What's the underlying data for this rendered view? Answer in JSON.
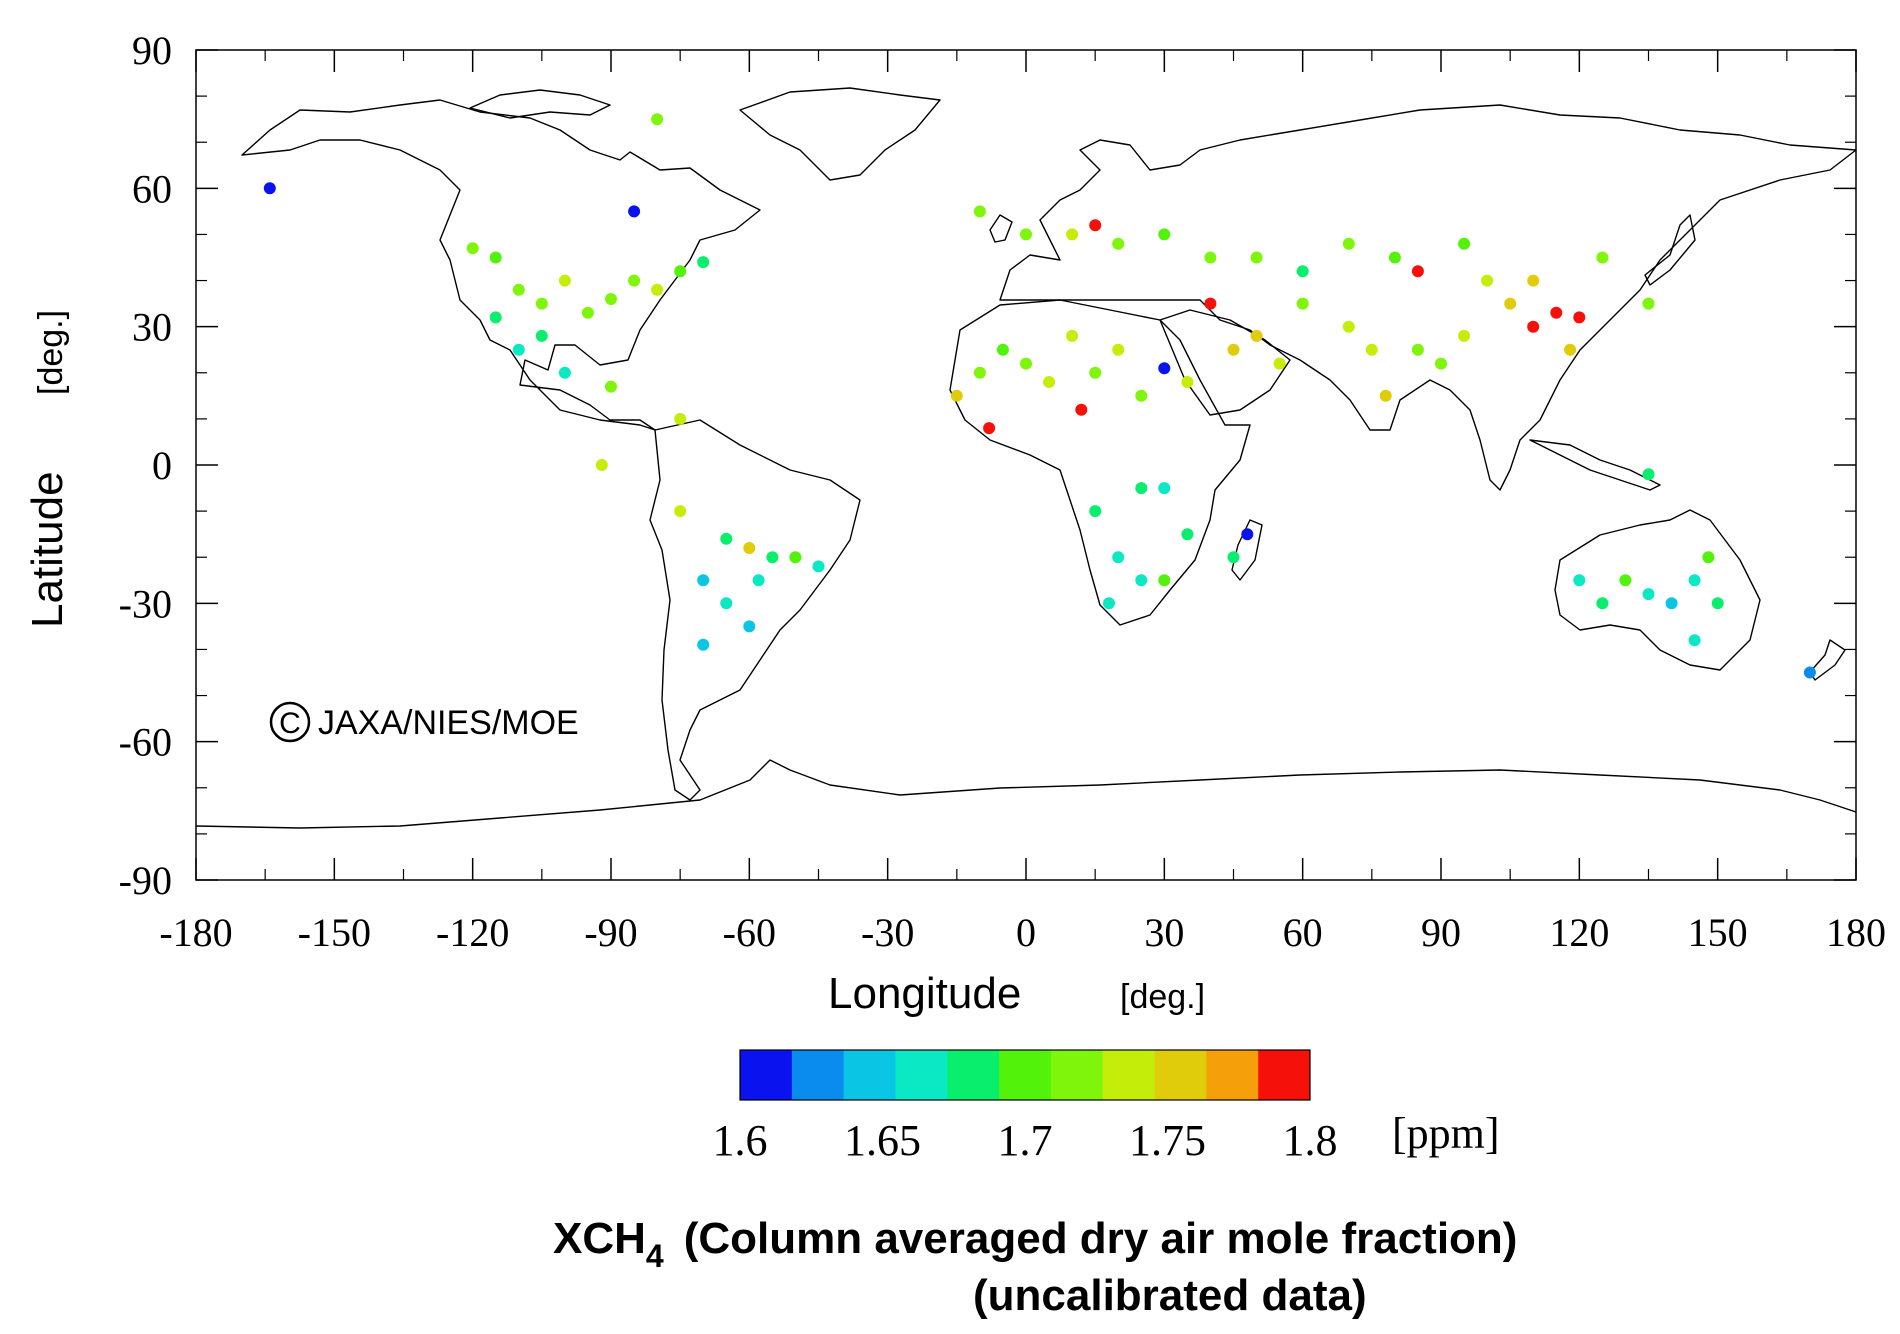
{
  "map": {
    "x_label": "Longitude",
    "x_unit": "[deg.]",
    "y_label": "Latitude",
    "y_unit": "[deg.]",
    "x_ticks": [
      "-180",
      "-150",
      "-120",
      "-90",
      "-60",
      "-30",
      "0",
      "30",
      "60",
      "90",
      "120",
      "150",
      "180"
    ],
    "y_ticks": [
      "90",
      "60",
      "30",
      "0",
      "-30",
      "-60",
      "-90"
    ],
    "copyright_symbol": "C",
    "copyright_text": "JAXA/NIES/MOE"
  },
  "colorbar": {
    "tick_labels": [
      "1.6",
      "1.65",
      "1.7",
      "1.75",
      "1.8"
    ],
    "unit": "[ppm]",
    "colors": [
      "#0a12f0",
      "#0a8cee",
      "#0ac6e4",
      "#0ae8c4",
      "#0aee6e",
      "#52f20a",
      "#7ef50a",
      "#c4ee0a",
      "#e0cc0a",
      "#f5a00a",
      "#f5100a"
    ]
  },
  "caption": {
    "symbol_main": "XCH",
    "symbol_sub": "4",
    "line1": "(Column averaged dry air mole fraction)",
    "line2": "(uncalibrated data)"
  },
  "chart_data": {
    "type": "scatter",
    "xlim": [
      -180,
      180
    ],
    "ylim": [
      -90,
      90
    ],
    "color_range": [
      1.6,
      1.8
    ],
    "grid": false,
    "points": [
      {
        "lon": -164,
        "lat": 60,
        "v": 1.6
      },
      {
        "lon": -85,
        "lat": 55,
        "v": 1.61
      },
      {
        "lon": -80,
        "lat": 75,
        "v": 1.71
      },
      {
        "lon": -120,
        "lat": 47,
        "v": 1.71
      },
      {
        "lon": -115,
        "lat": 45,
        "v": 1.7
      },
      {
        "lon": -110,
        "lat": 38,
        "v": 1.72
      },
      {
        "lon": -105,
        "lat": 35,
        "v": 1.71
      },
      {
        "lon": -100,
        "lat": 40,
        "v": 1.73
      },
      {
        "lon": -95,
        "lat": 33,
        "v": 1.72
      },
      {
        "lon": -90,
        "lat": 36,
        "v": 1.71
      },
      {
        "lon": -85,
        "lat": 40,
        "v": 1.72
      },
      {
        "lon": -80,
        "lat": 38,
        "v": 1.73
      },
      {
        "lon": -75,
        "lat": 42,
        "v": 1.7
      },
      {
        "lon": -70,
        "lat": 44,
        "v": 1.69
      },
      {
        "lon": -110,
        "lat": 25,
        "v": 1.66
      },
      {
        "lon": -100,
        "lat": 20,
        "v": 1.67
      },
      {
        "lon": -105,
        "lat": 28,
        "v": 1.68
      },
      {
        "lon": -115,
        "lat": 32,
        "v": 1.69
      },
      {
        "lon": -90,
        "lat": 17,
        "v": 1.72
      },
      {
        "lon": -92,
        "lat": 0,
        "v": 1.74
      },
      {
        "lon": -75,
        "lat": 10,
        "v": 1.74
      },
      {
        "lon": -75,
        "lat": -10,
        "v": 1.74
      },
      {
        "lon": -70,
        "lat": -25,
        "v": 1.65
      },
      {
        "lon": -70,
        "lat": -39,
        "v": 1.65
      },
      {
        "lon": -65,
        "lat": -30,
        "v": 1.66
      },
      {
        "lon": -60,
        "lat": -35,
        "v": 1.64
      },
      {
        "lon": -58,
        "lat": -25,
        "v": 1.67
      },
      {
        "lon": -60,
        "lat": -18,
        "v": 1.76
      },
      {
        "lon": -55,
        "lat": -20,
        "v": 1.69
      },
      {
        "lon": -50,
        "lat": -20,
        "v": 1.7
      },
      {
        "lon": -45,
        "lat": -22,
        "v": 1.66
      },
      {
        "lon": -65,
        "lat": -16,
        "v": 1.69
      },
      {
        "lon": -15,
        "lat": 15,
        "v": 1.75
      },
      {
        "lon": -10,
        "lat": 20,
        "v": 1.72
      },
      {
        "lon": -5,
        "lat": 25,
        "v": 1.7
      },
      {
        "lon": 0,
        "lat": 22,
        "v": 1.72
      },
      {
        "lon": 5,
        "lat": 18,
        "v": 1.73
      },
      {
        "lon": 10,
        "lat": 28,
        "v": 1.74
      },
      {
        "lon": 15,
        "lat": 20,
        "v": 1.71
      },
      {
        "lon": 20,
        "lat": 25,
        "v": 1.73
      },
      {
        "lon": 25,
        "lat": 15,
        "v": 1.72
      },
      {
        "lon": 30,
        "lat": 21,
        "v": 1.61
      },
      {
        "lon": 35,
        "lat": 18,
        "v": 1.74
      },
      {
        "lon": 12,
        "lat": 12,
        "v": 1.79
      },
      {
        "lon": -8,
        "lat": 8,
        "v": 1.79
      },
      {
        "lon": 40,
        "lat": 35,
        "v": 1.79
      },
      {
        "lon": 45,
        "lat": 25,
        "v": 1.75
      },
      {
        "lon": 50,
        "lat": 28,
        "v": 1.76
      },
      {
        "lon": 55,
        "lat": 22,
        "v": 1.74
      },
      {
        "lon": 60,
        "lat": 35,
        "v": 1.72
      },
      {
        "lon": 70,
        "lat": 30,
        "v": 1.73
      },
      {
        "lon": 75,
        "lat": 25,
        "v": 1.74
      },
      {
        "lon": 78,
        "lat": 15,
        "v": 1.75
      },
      {
        "lon": 85,
        "lat": 25,
        "v": 1.72
      },
      {
        "lon": 90,
        "lat": 22,
        "v": 1.72
      },
      {
        "lon": 95,
        "lat": 28,
        "v": 1.74
      },
      {
        "lon": 85,
        "lat": 42,
        "v": 1.79
      },
      {
        "lon": 100,
        "lat": 40,
        "v": 1.73
      },
      {
        "lon": 105,
        "lat": 35,
        "v": 1.75
      },
      {
        "lon": 110,
        "lat": 30,
        "v": 1.79
      },
      {
        "lon": 115,
        "lat": 33,
        "v": 1.8
      },
      {
        "lon": 120,
        "lat": 32,
        "v": 1.79
      },
      {
        "lon": 118,
        "lat": 25,
        "v": 1.76
      },
      {
        "lon": 110,
        "lat": 40,
        "v": 1.76
      },
      {
        "lon": 125,
        "lat": 45,
        "v": 1.72
      },
      {
        "lon": 135,
        "lat": 35,
        "v": 1.71
      },
      {
        "lon": 0,
        "lat": 50,
        "v": 1.71
      },
      {
        "lon": 10,
        "lat": 50,
        "v": 1.73
      },
      {
        "lon": 20,
        "lat": 48,
        "v": 1.72
      },
      {
        "lon": 30,
        "lat": 50,
        "v": 1.7
      },
      {
        "lon": 40,
        "lat": 45,
        "v": 1.71
      },
      {
        "lon": 50,
        "lat": 45,
        "v": 1.72
      },
      {
        "lon": 60,
        "lat": 42,
        "v": 1.69
      },
      {
        "lon": 70,
        "lat": 48,
        "v": 1.71
      },
      {
        "lon": 80,
        "lat": 45,
        "v": 1.7
      },
      {
        "lon": 95,
        "lat": 48,
        "v": 1.7
      },
      {
        "lon": 15,
        "lat": 52,
        "v": 1.79
      },
      {
        "lon": -10,
        "lat": 55,
        "v": 1.71
      },
      {
        "lon": 20,
        "lat": -20,
        "v": 1.67
      },
      {
        "lon": 25,
        "lat": -25,
        "v": 1.66
      },
      {
        "lon": 18,
        "lat": -30,
        "v": 1.67
      },
      {
        "lon": 30,
        "lat": -25,
        "v": 1.7
      },
      {
        "lon": 35,
        "lat": -15,
        "v": 1.68
      },
      {
        "lon": 15,
        "lat": -10,
        "v": 1.69
      },
      {
        "lon": 25,
        "lat": -5,
        "v": 1.68
      },
      {
        "lon": 30,
        "lat": -5,
        "v": 1.66
      },
      {
        "lon": 48,
        "lat": -15,
        "v": 1.6
      },
      {
        "lon": 45,
        "lat": -20,
        "v": 1.68
      },
      {
        "lon": 120,
        "lat": -25,
        "v": 1.67
      },
      {
        "lon": 125,
        "lat": -30,
        "v": 1.68
      },
      {
        "lon": 130,
        "lat": -25,
        "v": 1.7
      },
      {
        "lon": 135,
        "lat": -28,
        "v": 1.66
      },
      {
        "lon": 140,
        "lat": -30,
        "v": 1.65
      },
      {
        "lon": 145,
        "lat": -25,
        "v": 1.67
      },
      {
        "lon": 150,
        "lat": -30,
        "v": 1.68
      },
      {
        "lon": 145,
        "lat": -38,
        "v": 1.67
      },
      {
        "lon": 148,
        "lat": -20,
        "v": 1.7
      },
      {
        "lon": 135,
        "lat": -2,
        "v": 1.69
      },
      {
        "lon": 170,
        "lat": -45,
        "v": 1.63
      }
    ]
  }
}
